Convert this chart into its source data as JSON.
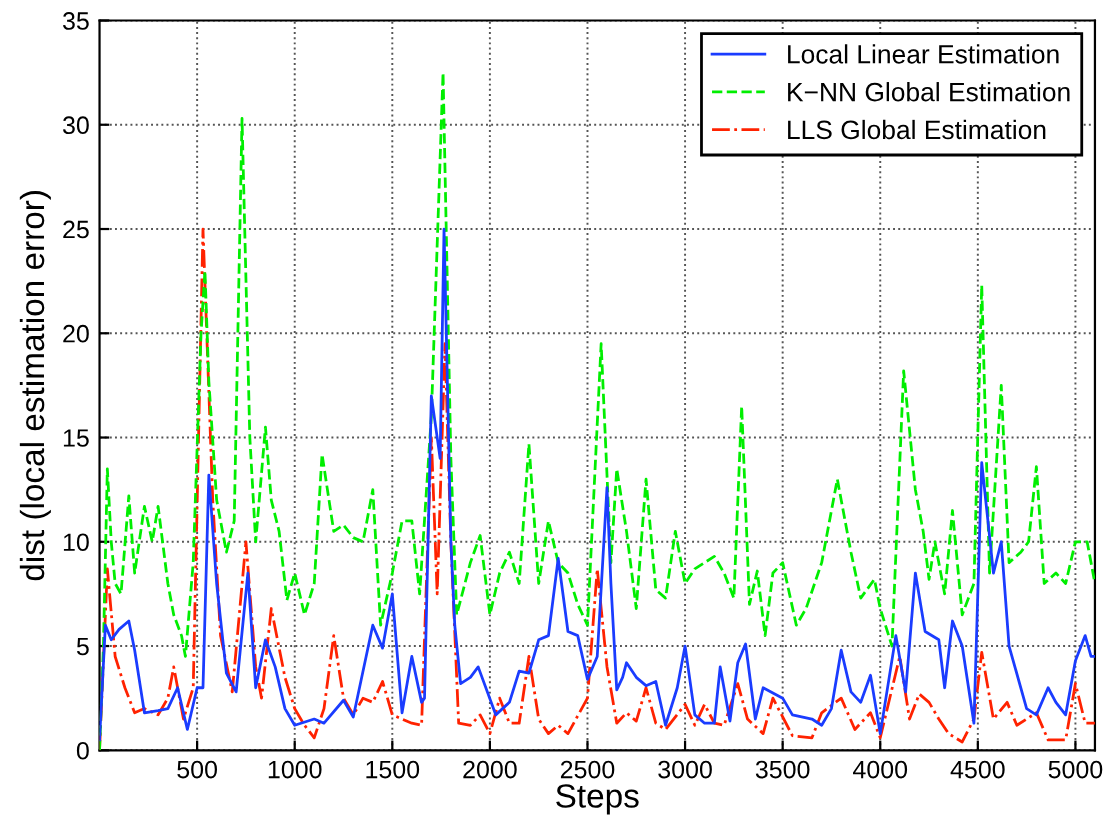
{
  "chart_data": {
    "type": "line",
    "xlabel": "Steps",
    "ylabel": "dist (local estimation error)",
    "xlim": [
      0,
      5100
    ],
    "ylim": [
      0,
      35
    ],
    "xticks": [
      500,
      1000,
      1500,
      2000,
      2500,
      3000,
      3500,
      4000,
      4500,
      5000
    ],
    "yticks": [
      0,
      5,
      10,
      15,
      20,
      25,
      30,
      35
    ],
    "grid": true,
    "legend": "top right",
    "series": [
      {
        "name": "Local Linear Estimation",
        "color": "#1a3cff",
        "line_style": "solid",
        "x": [
          0,
          30,
          60,
          100,
          150,
          180,
          230,
          300,
          350,
          400,
          450,
          500,
          530,
          560,
          600,
          650,
          700,
          760,
          800,
          850,
          900,
          950,
          1000,
          1100,
          1150,
          1250,
          1300,
          1400,
          1450,
          1500,
          1550,
          1600,
          1650,
          1665,
          1700,
          1745,
          1765,
          1800,
          1820,
          1850,
          1900,
          1940,
          2030,
          2100,
          2150,
          2200,
          2250,
          2300,
          2350,
          2400,
          2450,
          2500,
          2550,
          2600,
          2620,
          2650,
          2680,
          2700,
          2750,
          2800,
          2850,
          2900,
          2960,
          3000,
          3050,
          3100,
          3150,
          3180,
          3230,
          3270,
          3310,
          3360,
          3400,
          3500,
          3550,
          3650,
          3700,
          3750,
          3800,
          3850,
          3900,
          3950,
          4000,
          4080,
          4130,
          4180,
          4230,
          4300,
          4330,
          4370,
          4420,
          4480,
          4520,
          4580,
          4620,
          4660,
          4750,
          4800,
          4860,
          4900,
          4950,
          5000,
          5050,
          5080,
          5100
        ],
        "values": [
          0.5,
          6,
          5.3,
          5.8,
          6.2,
          4.8,
          1.8,
          1.9,
          2,
          3,
          1,
          3,
          3,
          13.2,
          8,
          3.7,
          2.8,
          8.5,
          3,
          5.3,
          4,
          2,
          1.2,
          1.5,
          1.3,
          2.4,
          1.6,
          6,
          4.9,
          7.5,
          1.8,
          4.5,
          2.3,
          2.5,
          17,
          14,
          25,
          10,
          6,
          3.2,
          3.5,
          4,
          1.7,
          2.3,
          3.8,
          3.7,
          5.3,
          5.5,
          9.2,
          5.7,
          5.5,
          3.4,
          4.5,
          12.6,
          8,
          2.9,
          3.5,
          4.2,
          3.5,
          3.1,
          3.3,
          1.2,
          3,
          5,
          1.7,
          1.3,
          1.3,
          4,
          1.4,
          4.2,
          5.1,
          1.5,
          3,
          2.5,
          1.7,
          1.5,
          1.2,
          2,
          4.8,
          2.8,
          2.3,
          3.6,
          0.8,
          5.5,
          2.8,
          8.5,
          5.7,
          5.3,
          3,
          6.2,
          5,
          1.3,
          13.8,
          8.5,
          10,
          5,
          2,
          1.7,
          3,
          2.3,
          1.7,
          4.3,
          5.5,
          4.5,
          4.5
        ]
      },
      {
        "name": "K−NN Global Estimation",
        "color": "#00ee00",
        "line_style": "dashed",
        "x": [
          0,
          20,
          40,
          60,
          80,
          110,
          150,
          180,
          230,
          270,
          300,
          350,
          380,
          420,
          440,
          480,
          520,
          540,
          560,
          600,
          650,
          690,
          730,
          770,
          800,
          850,
          880,
          920,
          960,
          1000,
          1050,
          1100,
          1140,
          1200,
          1250,
          1300,
          1350,
          1400,
          1440,
          1500,
          1550,
          1600,
          1640,
          1700,
          1760,
          1800,
          1830,
          1900,
          1950,
          2000,
          2050,
          2100,
          2150,
          2200,
          2250,
          2300,
          2350,
          2400,
          2450,
          2500,
          2570,
          2620,
          2650,
          2700,
          2750,
          2800,
          2850,
          2900,
          2950,
          3000,
          3050,
          3100,
          3150,
          3200,
          3250,
          3290,
          3330,
          3370,
          3410,
          3450,
          3500,
          3570,
          3620,
          3700,
          3780,
          3850,
          3900,
          3970,
          4000,
          4060,
          4120,
          4180,
          4220,
          4250,
          4280,
          4330,
          4370,
          4420,
          4480,
          4520,
          4560,
          4620,
          4660,
          4720,
          4760,
          4800,
          4840,
          4900,
          4950,
          5000,
          5060,
          5100
        ],
        "values": [
          0,
          5,
          13.5,
          10,
          8,
          7.5,
          12.2,
          8.5,
          11.7,
          10,
          11.7,
          8,
          6.5,
          5.5,
          4.5,
          9,
          20,
          23,
          17.7,
          12,
          9.5,
          11,
          30.3,
          15,
          10,
          15.5,
          12,
          10.5,
          7.2,
          8.5,
          6.5,
          8,
          14.2,
          10.5,
          10.8,
          10.2,
          10,
          12.5,
          6,
          8.5,
          11,
          11,
          7.5,
          16,
          32.5,
          14,
          6.5,
          9,
          10.3,
          6.5,
          8.5,
          9.5,
          8,
          14.7,
          8,
          11,
          9,
          8.5,
          7,
          6,
          19.5,
          9,
          13.5,
          10.5,
          6.8,
          13,
          7.7,
          7.3,
          10.5,
          8,
          8.7,
          9,
          9.3,
          8.5,
          7.3,
          16.5,
          7,
          8.6,
          5.5,
          8.5,
          9,
          6,
          6.8,
          9,
          13,
          9.5,
          7.3,
          8.2,
          6.8,
          5,
          18.2,
          12.5,
          10.5,
          8.2,
          10,
          7.5,
          11.5,
          6.5,
          8,
          22.3,
          8.5,
          17.5,
          9,
          9.5,
          10,
          13.6,
          8,
          8.5,
          8,
          10,
          10,
          8
        ]
      },
      {
        "name": "LLS Global Estimation",
        "color": "#ff2200",
        "line_style": "dashdot",
        "x": [
          0,
          40,
          80,
          130,
          180,
          230,
          300,
          350,
          380,
          430,
          480,
          530,
          580,
          620,
          680,
          750,
          800,
          830,
          880,
          950,
          1000,
          1050,
          1100,
          1150,
          1200,
          1250,
          1300,
          1350,
          1400,
          1450,
          1500,
          1550,
          1600,
          1650,
          1700,
          1730,
          1770,
          1800,
          1840,
          1900,
          1950,
          2000,
          2050,
          2100,
          2150,
          2200,
          2250,
          2300,
          2350,
          2400,
          2500,
          2550,
          2600,
          2650,
          2700,
          2750,
          2800,
          2850,
          2900,
          3000,
          3050,
          3100,
          3150,
          3200,
          3270,
          3320,
          3400,
          3450,
          3550,
          3650,
          3700,
          3800,
          3870,
          3950,
          4000,
          4100,
          4150,
          4200,
          4250,
          4300,
          4350,
          4420,
          4480,
          4520,
          4580,
          4650,
          4700,
          4800,
          4860,
          4950,
          5000,
          5050,
          5100
        ],
        "values": [
          0,
          8.7,
          4.5,
          3,
          1.8,
          2,
          1.7,
          2.5,
          4,
          1.5,
          3,
          25,
          12,
          5.5,
          2.8,
          10,
          4,
          2.5,
          6.8,
          3.5,
          2,
          1.2,
          0.6,
          2,
          5.5,
          2.5,
          1.7,
          2.5,
          2.3,
          3.3,
          1.7,
          1.5,
          1.3,
          1.2,
          15,
          7.5,
          19.5,
          10,
          1.3,
          1.2,
          1.7,
          0.8,
          2.5,
          1.3,
          1.3,
          4.5,
          1.5,
          0.8,
          1.2,
          0.8,
          2.5,
          8.7,
          4,
          1.3,
          1.8,
          1.4,
          3,
          1.3,
          1,
          2.2,
          1.2,
          2.2,
          1.3,
          1.2,
          3.2,
          1.5,
          0.8,
          2.5,
          0.7,
          0.6,
          1.8,
          2.5,
          1,
          1.8,
          0.6,
          4.5,
          1.5,
          2.7,
          2.3,
          1.5,
          0.8,
          0.4,
          1.5,
          4.7,
          1.5,
          2.3,
          1.2,
          1.8,
          0.5,
          0.5,
          3.2,
          1.3,
          1.3
        ]
      }
    ]
  }
}
